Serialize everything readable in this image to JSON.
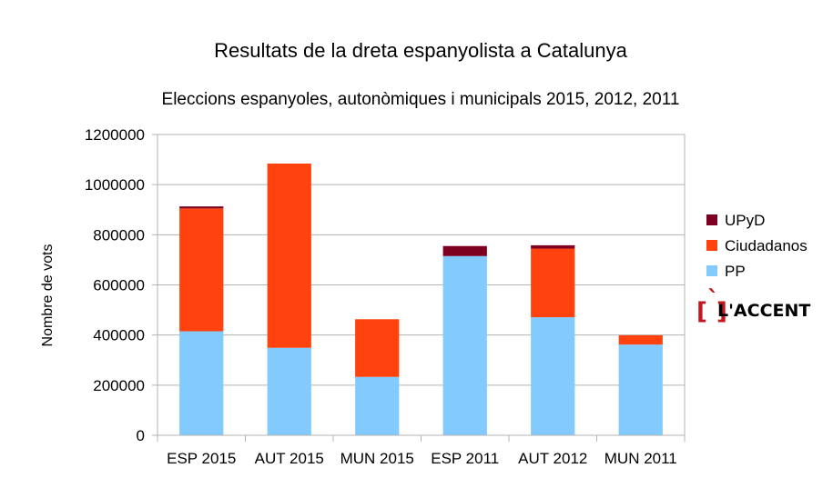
{
  "chart_data": {
    "type": "bar",
    "stacked": true,
    "title": "Resultats de la dreta espanyolista a Catalunya",
    "subtitle": "Eleccions espanyoles, autonòmiques i municipals 2015, 2012, 2011",
    "xlabel": "",
    "ylabel": "Nombre de vots",
    "ylim": [
      0,
      1200000
    ],
    "yticks": [
      0,
      200000,
      400000,
      600000,
      800000,
      1000000,
      1200000
    ],
    "ytick_labels": [
      "0",
      "200000",
      "400000",
      "600000",
      "800000",
      "1000000",
      "1200000"
    ],
    "grid": true,
    "legend_position": "right",
    "categories": [
      "ESP 2015",
      "AUT 2015",
      "MUN 2015",
      "ESP 2011",
      "AUT 2012",
      "MUN 2011"
    ],
    "series": [
      {
        "name": "PP",
        "color": "#83caff",
        "values": [
          415000,
          349000,
          233000,
          715000,
          471000,
          362000
        ]
      },
      {
        "name": "Ciudadanos",
        "color": "#ff420e",
        "values": [
          490000,
          735000,
          230000,
          0,
          274000,
          37000
        ]
      },
      {
        "name": "UPyD",
        "color": "#7e0021",
        "values": [
          8000,
          0,
          0,
          40000,
          13000,
          0
        ]
      }
    ]
  },
  "logo": {
    "text": "L'ACCENT",
    "bracket_color": "#c4161c"
  }
}
